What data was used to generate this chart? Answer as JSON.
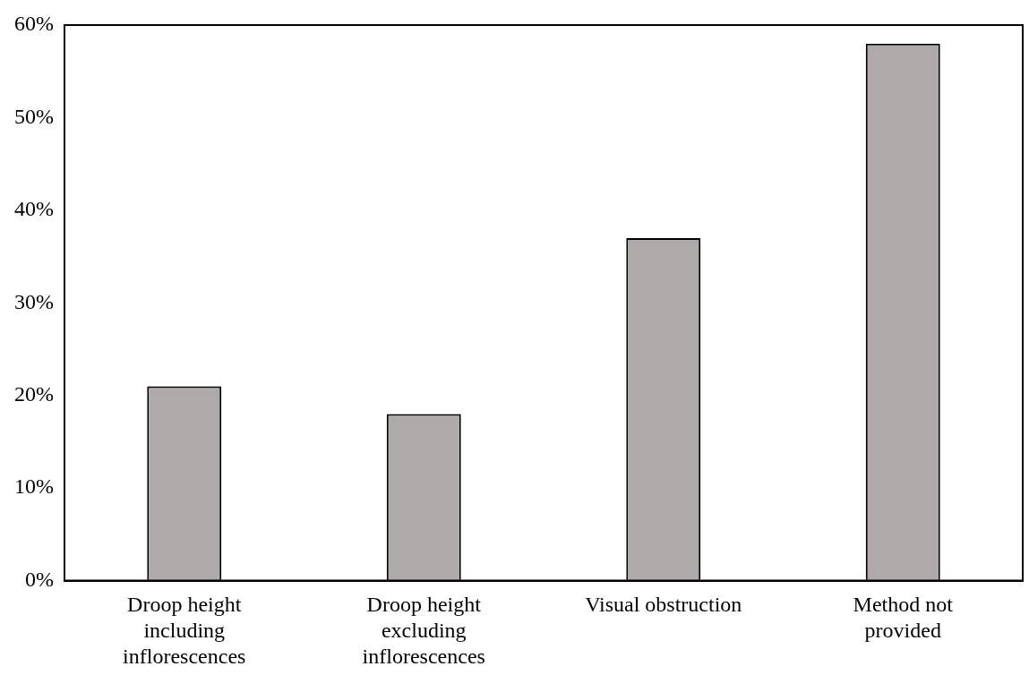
{
  "chart_data": {
    "type": "bar",
    "categories": [
      "Droop height including inflorescences",
      "Droop height excluding inflorescences",
      "Visual obstruction",
      "Method not provided"
    ],
    "values": [
      21,
      18,
      37,
      58
    ],
    "color": "#aeaaaa",
    "ylim": [
      0,
      60
    ],
    "yticks": [
      {
        "value": 0,
        "label": "0%"
      },
      {
        "value": 10,
        "label": "10%"
      },
      {
        "value": 20,
        "label": "20%"
      },
      {
        "value": 30,
        "label": "30%"
      },
      {
        "value": 40,
        "label": "40%"
      },
      {
        "value": 50,
        "label": "50%"
      },
      {
        "value": 60,
        "label": "60%"
      }
    ],
    "grid": false,
    "legend": false
  }
}
